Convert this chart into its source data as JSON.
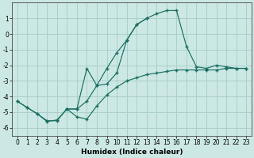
{
  "xlabel": "Humidex (Indice chaleur)",
  "bg_color": "#cce8e4",
  "grid_color": "#aacfcb",
  "line_color": "#1a6e62",
  "line1_x": [
    0,
    1,
    2,
    3,
    4,
    5,
    6,
    7,
    8,
    9,
    10,
    11,
    12,
    13,
    14,
    15,
    16,
    17,
    18,
    19,
    20,
    21,
    22,
    23
  ],
  "line1_y": [
    -4.3,
    -4.7,
    -5.1,
    -5.6,
    -5.5,
    -4.8,
    -4.8,
    -4.3,
    -3.3,
    -2.2,
    -1.2,
    -0.4,
    0.6,
    1.0,
    1.3,
    1.5,
    1.5,
    -0.8,
    -2.1,
    -2.2,
    -2.0,
    -2.1,
    -2.2,
    -2.2
  ],
  "line2_x": [
    0,
    1,
    2,
    3,
    4,
    5,
    6,
    7,
    8,
    9,
    10,
    11,
    12,
    13,
    14,
    15,
    16,
    17,
    18,
    19,
    20,
    21,
    22,
    23
  ],
  "line2_y": [
    -4.3,
    -4.7,
    -5.1,
    -5.55,
    -5.55,
    -4.8,
    -5.3,
    -5.45,
    -4.6,
    -3.9,
    -3.4,
    -3.0,
    -2.8,
    -2.6,
    -2.5,
    -2.4,
    -2.3,
    -2.3,
    -2.3,
    -2.3,
    -2.3,
    -2.2,
    -2.2,
    -2.2
  ],
  "line3_x": [
    5,
    6,
    7,
    8,
    9,
    10,
    11,
    12,
    13
  ],
  "line3_y": [
    -4.8,
    -4.8,
    -2.2,
    -3.3,
    -3.2,
    -2.5,
    -0.4,
    0.6,
    1.0
  ],
  "xlim": [
    -0.5,
    23.5
  ],
  "ylim": [
    -6.5,
    2.0
  ],
  "xticks": [
    0,
    1,
    2,
    3,
    4,
    5,
    6,
    7,
    8,
    9,
    10,
    11,
    12,
    13,
    14,
    15,
    16,
    17,
    18,
    19,
    20,
    21,
    22,
    23
  ],
  "yticks": [
    -6,
    -5,
    -4,
    -3,
    -2,
    -1,
    0,
    1
  ],
  "tick_fontsize": 5.5,
  "xlabel_fontsize": 6.5
}
